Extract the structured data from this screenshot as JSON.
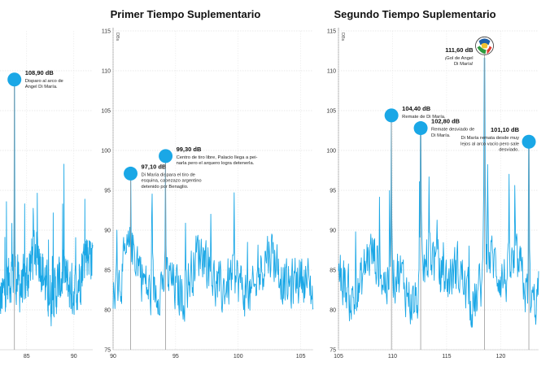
{
  "chart_data": [
    {
      "type": "line",
      "title": "",
      "ylabel": "",
      "xlim": [
        82,
        92
      ],
      "ylim": [
        75,
        115
      ],
      "x_ticks": [
        85,
        90
      ],
      "y_ticks": [],
      "color": "#1aa7e6",
      "series": [
        {
          "peaks": [
            {
              "x": 83.7,
              "y": 108.9
            }
          ]
        }
      ],
      "annotations": [
        {
          "x": 83.7,
          "y": 108.9,
          "value": "108,90 dB",
          "text": [
            "Disparo al arco de",
            "Angel Di María."
          ]
        }
      ]
    },
    {
      "type": "line",
      "title": "Primer Tiempo Suplementario",
      "ylabel": "DBs",
      "xlim": [
        90,
        106
      ],
      "ylim": [
        75,
        115
      ],
      "x_ticks": [
        90,
        95,
        100,
        105
      ],
      "y_ticks": [
        75,
        80,
        85,
        90,
        95,
        100,
        105,
        110,
        115
      ],
      "color": "#1aa7e6",
      "series": [
        {
          "peaks": [
            {
              "x": 91.4,
              "y": 97.1
            },
            {
              "x": 94.2,
              "y": 99.3
            }
          ]
        }
      ],
      "annotations": [
        {
          "x": 91.4,
          "y": 97.1,
          "value": "97,10 dB",
          "text": [
            "Di María dispara el tiro de",
            "esquina, cabezazo argentino",
            "detenido por Benaglio."
          ]
        },
        {
          "x": 94.2,
          "y": 99.3,
          "value": "99,30 dB",
          "text": [
            "Centro de tiro libre, Palacio llega a pei-",
            "narla pero el arquero logra detenerla."
          ]
        }
      ]
    },
    {
      "type": "line",
      "title": "Segundo Tiempo Suplementario",
      "ylabel": "DBs",
      "xlim": [
        105,
        123.5
      ],
      "ylim": [
        75,
        115
      ],
      "x_ticks": [
        105,
        110,
        115,
        120
      ],
      "y_ticks": [
        75,
        80,
        85,
        90,
        95,
        100,
        105,
        110,
        115
      ],
      "color": "#1aa7e6",
      "series": [
        {
          "peaks": [
            {
              "x": 109.9,
              "y": 104.4
            },
            {
              "x": 112.6,
              "y": 102.8
            },
            {
              "x": 118.5,
              "y": 111.6
            },
            {
              "x": 122.6,
              "y": 101.1
            }
          ]
        }
      ],
      "annotations": [
        {
          "x": 109.9,
          "y": 104.4,
          "value": "104,40 dB",
          "text": [
            "Remate de Di María."
          ]
        },
        {
          "x": 112.6,
          "y": 102.8,
          "value": "102,80 dB",
          "text": [
            "Remate desviado de",
            "Di María."
          ]
        },
        {
          "x": 118.5,
          "y": 111.6,
          "value": "111,60 dB",
          "text": [
            "¡Gol de Angel",
            "Di María!"
          ]
        },
        {
          "x": 122.6,
          "y": 101.1,
          "value": "101,10 dB",
          "text": [
            "Di María remata desde muy",
            "lejos al arco vacío pero sale",
            "desviado."
          ]
        }
      ]
    }
  ],
  "icons": {
    "ball": "soccer-ball-icon"
  }
}
